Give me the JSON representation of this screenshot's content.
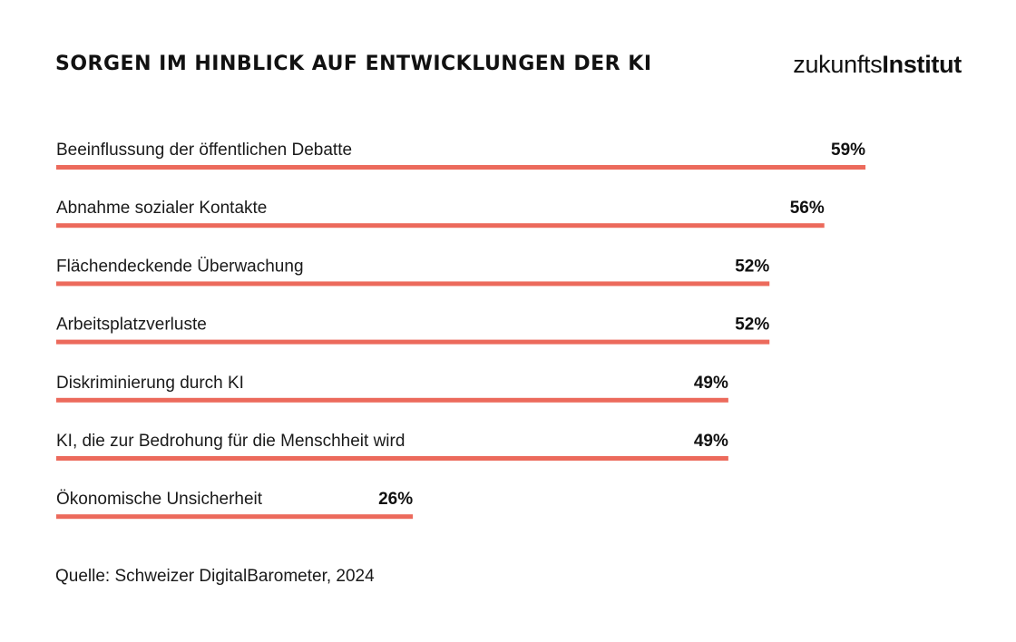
{
  "chart_data": {
    "type": "bar",
    "orientation": "horizontal",
    "title": "SORGEN IM HINBLICK AUF ENTWICKLUNGEN DER KI",
    "categories": [
      "Beeinflussung der öffentlichen Debatte",
      "Abnahme sozialer Kontakte",
      "Flächendeckende Überwachung",
      "Arbeitsplatzverluste",
      "Diskriminierung durch KI",
      "KI, die zur Bedrohung für die Menschheit wird",
      "Ökonomische Unsicherheit"
    ],
    "values": [
      59,
      56,
      52,
      52,
      49,
      49,
      26
    ],
    "value_labels": [
      "59%",
      "56%",
      "52%",
      "52%",
      "49%",
      "49%",
      "26%"
    ],
    "unit": "%",
    "xlim": [
      0,
      100
    ],
    "bar_color": "#ec6a5c",
    "source": "Quelle: Schweizer DigitalBarometer, 2024"
  },
  "brand": {
    "logo_light": "zukunfts",
    "logo_bold": "Institut"
  }
}
